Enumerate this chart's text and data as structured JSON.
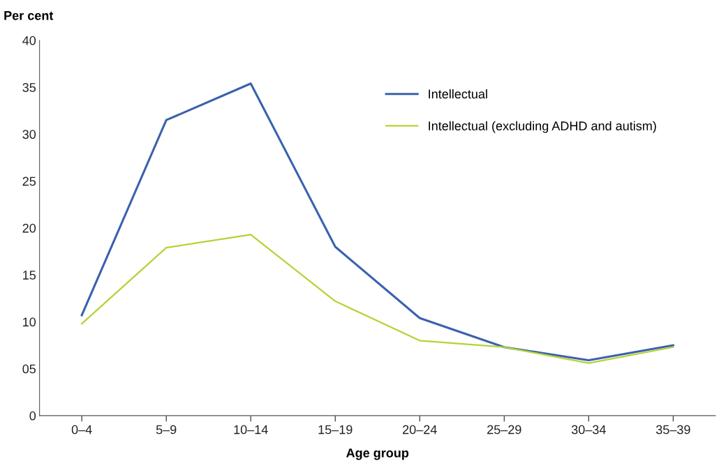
{
  "chart_data": {
    "type": "line",
    "xlabel": "Age group",
    "ylabel": "Per cent",
    "categories": [
      "0–4",
      "5–9",
      "10–14",
      "15–19",
      "20–24",
      "25–29",
      "30–34",
      "35–39"
    ],
    "series": [
      {
        "name": "Intellectual",
        "color": "#3a62ad",
        "values": [
          10.7,
          31.5,
          35.4,
          18.0,
          10.4,
          7.3,
          5.9,
          7.5
        ]
      },
      {
        "name": "Intellectual (excluding ADHD and autism)",
        "color": "#b5d334",
        "values": [
          9.8,
          17.9,
          19.3,
          12.2,
          8.0,
          7.3,
          5.6,
          7.3
        ]
      }
    ],
    "ylim": [
      0,
      40
    ],
    "yticks": [
      0,
      {
        "value": 5,
        "label": "05"
      },
      10,
      15,
      20,
      25,
      30,
      35,
      40
    ],
    "grid": false,
    "legend": "top right",
    "marker": "none",
    "line_style": "solid"
  }
}
